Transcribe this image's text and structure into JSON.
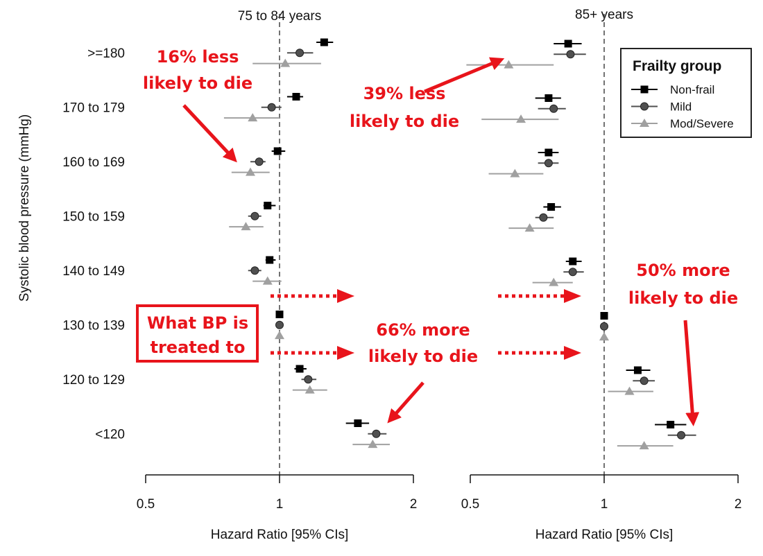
{
  "chart_data": {
    "type": "forest",
    "ylabel": "Systolic blood pressure (mmHg)",
    "categories": [
      ">=180",
      "170 to 179",
      "160 to 169",
      "150 to 159",
      "140 to 149",
      "130 to 139",
      "120 to 129",
      "<120"
    ],
    "x_scale": "log",
    "xlim": [
      0.5,
      2
    ],
    "x_ticks": [
      "0.5",
      "1",
      "2"
    ],
    "reference_line": 1,
    "legend": {
      "title": "Frailty group",
      "placement": "top-right",
      "entries": [
        "Non-frail",
        "Mild",
        "Mod/Severe"
      ]
    },
    "series_colors": {
      "Non-frail": "#000000",
      "Mild": "#505050",
      "Mod/Severe": "#a0a0a0"
    },
    "panels": [
      {
        "title": "75 to 84 years",
        "xlabel": "Hazard Ratio [95% CIs]",
        "series": [
          {
            "name": "Non-frail",
            "hr": [
              1.26,
              1.09,
              0.99,
              0.94,
              0.95,
              1.0,
              1.11,
              1.5
            ],
            "lo": [
              1.21,
              1.04,
              0.96,
              0.92,
              0.93,
              1.0,
              1.08,
              1.41
            ],
            "hi": [
              1.32,
              1.13,
              1.03,
              0.98,
              0.98,
              1.0,
              1.15,
              1.59
            ]
          },
          {
            "name": "Mild",
            "hr": [
              1.11,
              0.96,
              0.9,
              0.88,
              0.88,
              1.0,
              1.16,
              1.65
            ],
            "lo": [
              1.04,
              0.91,
              0.86,
              0.85,
              0.85,
              1.0,
              1.12,
              1.58
            ],
            "hi": [
              1.19,
              1.01,
              0.93,
              0.91,
              0.91,
              1.0,
              1.21,
              1.74
            ]
          },
          {
            "name": "Mod/Severe",
            "hr": [
              1.03,
              0.87,
              0.86,
              0.84,
              0.94,
              1.0,
              1.17,
              1.62
            ],
            "lo": [
              0.87,
              0.75,
              0.78,
              0.77,
              0.87,
              1.0,
              1.07,
              1.46
            ],
            "hi": [
              1.24,
              1.0,
              0.95,
              0.92,
              1.01,
              1.0,
              1.28,
              1.77
            ]
          }
        ]
      },
      {
        "title": "85+ years",
        "xlabel": "Hazard Ratio [95% CIs]",
        "series": [
          {
            "name": "Non-frail",
            "hr": [
              0.83,
              0.75,
              0.75,
              0.76,
              0.85,
              1.0,
              1.19,
              1.41
            ],
            "lo": [
              0.77,
              0.7,
              0.71,
              0.73,
              0.82,
              1.0,
              1.12,
              1.3
            ],
            "hi": [
              0.89,
              0.8,
              0.79,
              0.8,
              0.89,
              1.0,
              1.27,
              1.53
            ]
          },
          {
            "name": "Mild",
            "hr": [
              0.84,
              0.77,
              0.75,
              0.73,
              0.85,
              1.0,
              1.23,
              1.49
            ],
            "lo": [
              0.77,
              0.71,
              0.71,
              0.7,
              0.81,
              1.0,
              1.16,
              1.39
            ],
            "hi": [
              0.91,
              0.82,
              0.79,
              0.77,
              0.9,
              1.0,
              1.3,
              1.61
            ]
          },
          {
            "name": "Mod/Severe",
            "hr": [
              0.61,
              0.65,
              0.63,
              0.68,
              0.77,
              1.0,
              1.14,
              1.23
            ],
            "lo": [
              0.49,
              0.53,
              0.55,
              0.61,
              0.69,
              1.0,
              1.02,
              1.07
            ],
            "hi": [
              0.77,
              0.79,
              0.73,
              0.77,
              0.85,
              1.0,
              1.29,
              1.43
            ]
          }
        ]
      }
    ],
    "annotations": {
      "a1": [
        "16% less",
        "likely to die"
      ],
      "a2": [
        "39% less",
        "likely to die"
      ],
      "a3": [
        "66% more",
        "likely to die"
      ],
      "a4": [
        "50% more",
        "likely to die"
      ],
      "box": [
        "What BP is",
        "treated to"
      ]
    },
    "annotation_color": "#e8141b"
  }
}
